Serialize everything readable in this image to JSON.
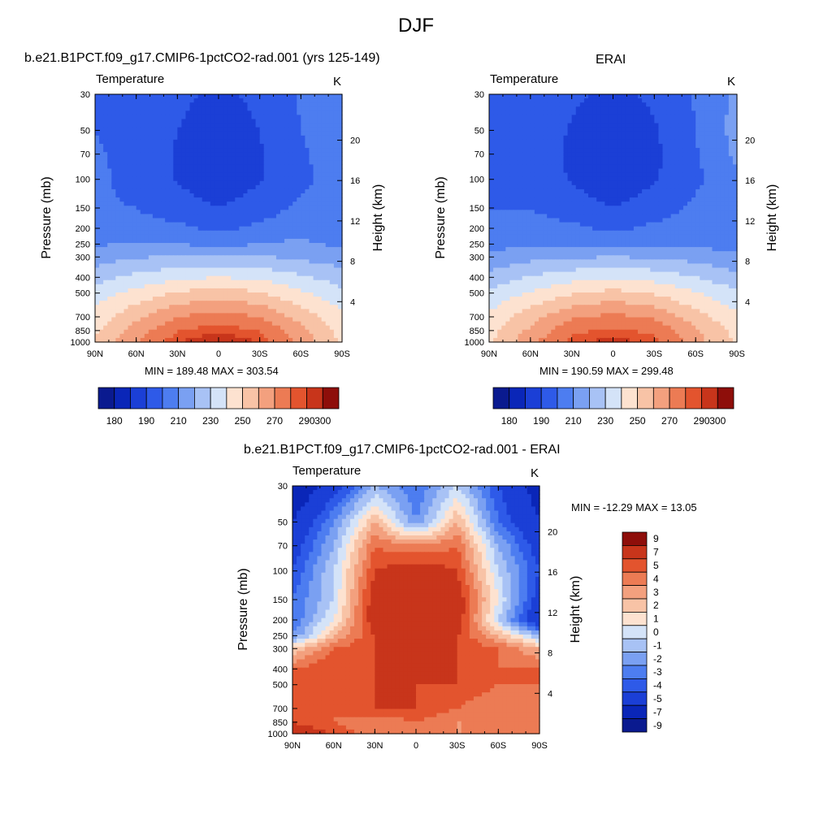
{
  "page": {
    "title": "DJF"
  },
  "colors": {
    "levels_abs": [
      "#0a1a8f",
      "#0a26b8",
      "#1b3fd6",
      "#2e5ae8",
      "#4d7df0",
      "#7aa0f2",
      "#a8c2f5",
      "#d4e3f8",
      "#fde2d0",
      "#f8c3a6",
      "#f3a07e",
      "#ec7b54",
      "#e3542e",
      "#c8351b",
      "#8e0e0a"
    ],
    "levels_diff": [
      "#0a1a8f",
      "#0a26b8",
      "#1b3fd6",
      "#2e5ae8",
      "#4d7df0",
      "#7aa0f2",
      "#a8c2f5",
      "#d4e3f8",
      "#fde2d0",
      "#f8c3a6",
      "#f3a07e",
      "#ec7b54",
      "#e3542e",
      "#c8351b",
      "#8e0e0a"
    ]
  },
  "panels": [
    {
      "id": "model",
      "title": "b.e21.B1PCT.f09_g17.CMIP6-1pctCO2-rad.001 (yrs 125-149)",
      "subtitle": "Temperature",
      "units": "K",
      "minmax": "MIN = 189.48  MAX = 303.54",
      "ylabel": "Pressure (mb)",
      "y2label": "Height (km)"
    },
    {
      "id": "erai",
      "title": "ERAI",
      "subtitle": "Temperature",
      "units": "K",
      "minmax": "MIN = 190.59  MAX = 299.48",
      "ylabel": "Pressure (mb)",
      "y2label": "Height (km)"
    },
    {
      "id": "diff",
      "title": "b.e21.B1PCT.f09_g17.CMIP6-1pctCO2-rad.001 - ERAI",
      "subtitle": "Temperature",
      "units": "K",
      "minmax": "MIN = -12.29  MAX =  13.05",
      "ylabel": "Pressure (mb)",
      "y2label": "Height (km)"
    }
  ],
  "axes": {
    "x_ticks": [
      "90N",
      "60N",
      "30N",
      "0",
      "30S",
      "60S",
      "90S"
    ],
    "pressure_ticks": [
      "30",
      "50",
      "70",
      "100",
      "150",
      "200",
      "250",
      "300",
      "400",
      "500",
      "700",
      "850",
      "1000"
    ],
    "height_ticks": [
      "20",
      "16",
      "12",
      "8",
      "4"
    ]
  },
  "colorbars": {
    "abs_labels": [
      "180",
      "190",
      "210",
      "230",
      "250",
      "270",
      "290",
      "300"
    ],
    "diff_labels": [
      "9",
      "7",
      "5",
      "4",
      "3",
      "2",
      "1",
      "0",
      "-1",
      "-2",
      "-3",
      "-4",
      "-5",
      "-7",
      "-9"
    ]
  },
  "chart_data": [
    {
      "type": "heatmap",
      "title": "b.e21.B1PCT.f09_g17.CMIP6-1pctCO2-rad.001 (yrs 125-149)",
      "subtitle": "Temperature",
      "units": "K",
      "xlabel": "",
      "ylabel": "Pressure (mb)",
      "y2label": "Height (km)",
      "x_ticks": [
        "90N",
        "60N",
        "30N",
        "0",
        "30S",
        "60S",
        "90S"
      ],
      "y_ticks": [
        30,
        50,
        70,
        100,
        150,
        200,
        250,
        300,
        400,
        500,
        700,
        850,
        1000
      ],
      "y2_ticks": [
        20,
        16,
        12,
        8,
        4
      ],
      "min": 189.48,
      "max": 303.54,
      "colorbar_labels": [
        180,
        190,
        210,
        230,
        250,
        270,
        290,
        300
      ],
      "lat": [
        90,
        60,
        30,
        0,
        -30,
        -60,
        -90
      ],
      "pressure": [
        30,
        50,
        70,
        100,
        150,
        200,
        250,
        300,
        400,
        500,
        700,
        850,
        1000
      ],
      "values": [
        [
          208,
          206,
          203,
          197,
          203,
          211,
          214
        ],
        [
          210,
          207,
          200,
          193,
          200,
          210,
          215
        ],
        [
          211,
          207,
          199,
          192,
          199,
          209,
          214
        ],
        [
          212,
          207,
          199,
          193,
          199,
          208,
          214
        ],
        [
          211,
          210,
          205,
          200,
          205,
          212,
          212
        ],
        [
          210,
          213,
          212,
          208,
          212,
          217,
          211
        ],
        [
          219,
          221,
          220,
          217,
          220,
          222,
          218
        ],
        [
          225,
          229,
          231,
          232,
          231,
          228,
          224
        ],
        [
          236,
          243,
          248,
          250,
          248,
          242,
          235
        ],
        [
          245,
          253,
          261,
          265,
          261,
          252,
          243
        ],
        [
          254,
          268,
          280,
          285,
          280,
          266,
          252
        ],
        [
          258,
          274,
          290,
          294,
          290,
          273,
          256
        ],
        [
          261,
          279,
          295,
          300,
          295,
          276,
          258
        ]
      ]
    },
    {
      "type": "heatmap",
      "title": "ERAI",
      "subtitle": "Temperature",
      "units": "K",
      "xlabel": "",
      "ylabel": "Pressure (mb)",
      "y2label": "Height (km)",
      "x_ticks": [
        "90N",
        "60N",
        "30N",
        "0",
        "30S",
        "60S",
        "90S"
      ],
      "y_ticks": [
        30,
        50,
        70,
        100,
        150,
        200,
        250,
        300,
        400,
        500,
        700,
        850,
        1000
      ],
      "y2_ticks": [
        20,
        16,
        12,
        8,
        4
      ],
      "min": 190.59,
      "max": 299.48,
      "colorbar_labels": [
        180,
        190,
        210,
        230,
        250,
        270,
        290,
        300
      ],
      "lat": [
        90,
        60,
        30,
        0,
        -30,
        -60,
        -90
      ],
      "pressure": [
        30,
        50,
        70,
        100,
        150,
        200,
        250,
        300,
        400,
        500,
        700,
        850,
        1000
      ],
      "values": [
        [
          207,
          206,
          202,
          197,
          202,
          211,
          222
        ],
        [
          209,
          207,
          199,
          193,
          199,
          210,
          224
        ],
        [
          210,
          207,
          198,
          192,
          198,
          209,
          222
        ],
        [
          210,
          207,
          199,
          193,
          199,
          208,
          218
        ],
        [
          210,
          210,
          205,
          200,
          205,
          212,
          214
        ],
        [
          210,
          213,
          212,
          208,
          212,
          215,
          212
        ],
        [
          216,
          219,
          218,
          216,
          218,
          219,
          215
        ],
        [
          223,
          227,
          229,
          230,
          229,
          226,
          222
        ],
        [
          233,
          241,
          246,
          249,
          246,
          240,
          233
        ],
        [
          243,
          251,
          259,
          263,
          259,
          251,
          242
        ],
        [
          252,
          266,
          278,
          283,
          278,
          264,
          252
        ],
        [
          256,
          272,
          288,
          292,
          288,
          272,
          256
        ],
        [
          259,
          277,
          293,
          298,
          293,
          274,
          258
        ]
      ]
    },
    {
      "type": "heatmap",
      "title": "b.e21.B1PCT.f09_g17.CMIP6-1pctCO2-rad.001 - ERAI",
      "subtitle": "Temperature",
      "units": "K",
      "xlabel": "",
      "ylabel": "Pressure (mb)",
      "y2label": "Height (km)",
      "x_ticks": [
        "90N",
        "60N",
        "30N",
        "0",
        "30S",
        "60S",
        "90S"
      ],
      "y_ticks": [
        30,
        50,
        70,
        100,
        150,
        200,
        250,
        300,
        400,
        500,
        700,
        850,
        1000
      ],
      "y2_ticks": [
        20,
        16,
        12,
        8,
        4
      ],
      "min": -12.29,
      "max": 13.05,
      "colorbar_labels": [
        9,
        7,
        5,
        4,
        3,
        2,
        1,
        0,
        -1,
        -2,
        -3,
        -4,
        -5,
        -7,
        -9
      ],
      "lat": [
        90,
        60,
        30,
        0,
        -30,
        -60,
        -90
      ],
      "pressure": [
        30,
        50,
        70,
        100,
        150,
        200,
        250,
        300,
        400,
        500,
        700,
        850,
        1000
      ],
      "values": [
        [
          -9,
          -6,
          -2,
          -4,
          -1,
          -5,
          -8
        ],
        [
          -7,
          -3,
          2,
          -3,
          2,
          -4,
          -7
        ],
        [
          -6,
          -2,
          4,
          3,
          4,
          -2,
          -6
        ],
        [
          -5,
          -1,
          5,
          6,
          5,
          -1,
          -5
        ],
        [
          -4,
          -1,
          6,
          7,
          6,
          0,
          -6
        ],
        [
          -4,
          0,
          6,
          7,
          6,
          -1,
          -7
        ],
        [
          -3,
          2,
          5,
          6,
          5,
          2,
          -2
        ],
        [
          1,
          4,
          5,
          6,
          5,
          4,
          2
        ],
        [
          4,
          5,
          5,
          6,
          5,
          4,
          4
        ],
        [
          4,
          4,
          5,
          5,
          5,
          4,
          4
        ],
        [
          4,
          4,
          5,
          5,
          4,
          3,
          4
        ],
        [
          5,
          4,
          3,
          4,
          3,
          3,
          4
        ],
        [
          6,
          5,
          3,
          4,
          3,
          3,
          4
        ]
      ]
    }
  ]
}
